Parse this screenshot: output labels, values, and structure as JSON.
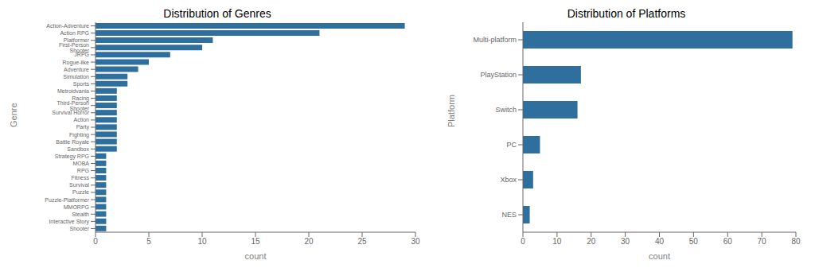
{
  "chart_data": [
    {
      "type": "bar",
      "title": "Distribution of Genres",
      "orientation": "horizontal",
      "categories": [
        "Action-Adventure",
        "Action RPG",
        "Platformer",
        "First-Person Shooter",
        "JRPG",
        "Rogue-like",
        "Adventure",
        "Simulation",
        "Sports",
        "Metroidvania",
        "Racing",
        "Third-Person Shooter",
        "Survival Horror",
        "Action",
        "Party",
        "Fighting",
        "Battle Royale",
        "Sandbox",
        "Strategy RPG",
        "MOBA",
        "RPG",
        "Fitness",
        "Survival",
        "Puzzle",
        "Puzzle-Platformer",
        "MMORPG",
        "Stealth",
        "Interactive Story",
        "Shooter"
      ],
      "values": [
        29,
        21,
        11,
        10,
        7,
        5,
        4,
        3,
        3,
        2,
        2,
        2,
        2,
        2,
        2,
        2,
        2,
        2,
        1,
        1,
        1,
        1,
        1,
        1,
        1,
        1,
        1,
        1,
        1
      ],
      "color": "#2e6f9e",
      "xlabel": "count",
      "ylabel": "Genre",
      "xlim": [
        0,
        30
      ],
      "xticks": [
        0,
        5,
        10,
        15,
        20,
        25,
        30
      ],
      "grid": false
    },
    {
      "type": "bar",
      "title": "Distribution of Platforms",
      "orientation": "horizontal",
      "categories": [
        "Multi-platform",
        "PlayStation",
        "Switch",
        "PC",
        "Xbox",
        "NES"
      ],
      "values": [
        79,
        17,
        16,
        5,
        3,
        2
      ],
      "color": "#2e6f9e",
      "xlabel": "count",
      "ylabel": "Platform",
      "xlim": [
        0,
        80
      ],
      "xticks": [
        0,
        10,
        20,
        30,
        40,
        50,
        60,
        70,
        80
      ],
      "grid": false
    }
  ]
}
